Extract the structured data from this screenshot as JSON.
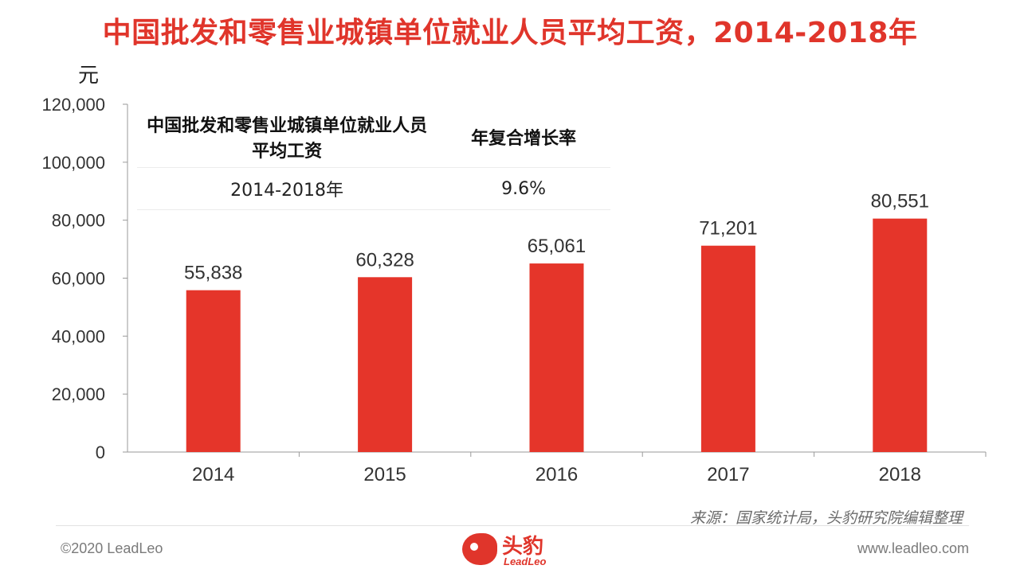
{
  "title": "中国批发和零售业城镇单位就业人员平均工资，2014-2018年",
  "y_unit": "元",
  "colors": {
    "bar": "#e5352a",
    "title": "#e0352b",
    "axis": "#9a9a9a"
  },
  "inset_table": {
    "headers": [
      "中国批发和零售业城镇单位就业人员平均工资",
      "年复合增长率"
    ],
    "rows": [
      {
        "period": "2014-2018年",
        "cagr": "9.6%"
      }
    ]
  },
  "chart_data": {
    "type": "bar",
    "categories": [
      "2014",
      "2015",
      "2016",
      "2017",
      "2018"
    ],
    "values": [
      55838,
      60328,
      65061,
      71201,
      80551
    ],
    "value_labels": [
      "55,838",
      "60,328",
      "65,061",
      "71,201",
      "80,551"
    ],
    "ylabel": "元",
    "ylim": [
      0,
      120000
    ],
    "yticks": [
      0,
      20000,
      40000,
      60000,
      80000,
      100000,
      120000
    ],
    "ytick_labels": [
      "0",
      "20,000",
      "40,000",
      "60,000",
      "80,000",
      "100,000",
      "120,000"
    ],
    "grid": false,
    "legend": "none"
  },
  "footer": {
    "source": "来源：国家统计局，头豹研究院编辑整理",
    "copyright": "©2020 LeadLeo",
    "website": "www.leadleo.com",
    "logo_cn": "头豹",
    "logo_en": "LeadLeo"
  }
}
